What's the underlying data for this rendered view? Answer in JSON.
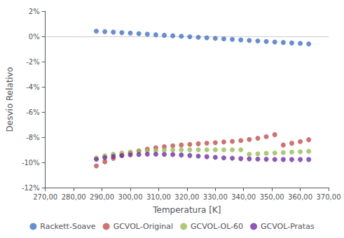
{
  "chart_data": {
    "type": "scatter",
    "xlabel": "Temperatura [K]",
    "ylabel": "Desvio Relativo",
    "x": [
      288,
      291,
      294,
      297,
      300,
      303,
      306,
      309,
      312,
      315,
      318,
      321,
      324,
      327,
      330,
      333,
      336,
      339,
      342,
      345,
      348,
      351,
      354,
      357,
      360,
      363
    ],
    "series": [
      {
        "name": "Rackett-Soave",
        "color": "#4472C4",
        "values": [
          0.0042,
          0.0038,
          0.0034,
          0.003,
          0.0026,
          0.0022,
          0.0018,
          0.0013,
          0.0009,
          0.0005,
          0.0001,
          -0.0003,
          -0.0007,
          -0.0011,
          -0.0015,
          -0.0019,
          -0.0024,
          -0.0028,
          -0.0032,
          -0.0036,
          -0.004,
          -0.0044,
          -0.0048,
          -0.0052,
          -0.0056,
          -0.006
        ]
      },
      {
        "name": "GCVOL-Original",
        "color": "#C0504D",
        "values": [
          -0.1028,
          -0.0995,
          -0.0968,
          -0.0945,
          -0.0925,
          -0.0908,
          -0.0895,
          -0.0884,
          -0.0875,
          -0.0868,
          -0.0862,
          -0.0857,
          -0.0852,
          -0.0847,
          -0.0843,
          -0.0838,
          -0.0833,
          -0.0826,
          -0.0818,
          -0.0808,
          -0.0796,
          -0.078,
          -0.0862,
          -0.0848,
          -0.0835,
          -0.082
        ]
      },
      {
        "name": "GCVOL-OL-60",
        "color": "#9BBB59",
        "values": [
          -0.0965,
          -0.0948,
          -0.0935,
          -0.0925,
          -0.0918,
          -0.0912,
          -0.0908,
          -0.0905,
          -0.0903,
          -0.0901,
          -0.09,
          -0.09,
          -0.09,
          -0.09,
          -0.09,
          -0.09,
          -0.09,
          -0.09,
          -0.0935,
          -0.0932,
          -0.0928,
          -0.0925,
          -0.0922,
          -0.0918,
          -0.0915,
          -0.0912
        ]
      },
      {
        "name": "GCVOL-Pratas",
        "color": "#7030A0",
        "values": [
          -0.0975,
          -0.0962,
          -0.0952,
          -0.0945,
          -0.094,
          -0.0937,
          -0.0935,
          -0.0935,
          -0.0936,
          -0.0938,
          -0.0941,
          -0.0945,
          -0.095,
          -0.0955,
          -0.096,
          -0.0964,
          -0.0967,
          -0.097,
          -0.0972,
          -0.0974,
          -0.0975,
          -0.0976,
          -0.0977,
          -0.0977,
          -0.0977,
          -0.0977
        ]
      }
    ],
    "xlim": [
      270,
      370
    ],
    "xticks": [
      {
        "value": 270,
        "label": "270,00"
      },
      {
        "value": 280,
        "label": "280,00"
      },
      {
        "value": 290,
        "label": "290,00"
      },
      {
        "value": 300,
        "label": "300,00"
      },
      {
        "value": 310,
        "label": "310,00"
      },
      {
        "value": 320,
        "label": "320,00"
      },
      {
        "value": 330,
        "label": "330,00"
      },
      {
        "value": 340,
        "label": "340,00"
      },
      {
        "value": 350,
        "label": "350,00"
      },
      {
        "value": 360,
        "label": "360,00"
      },
      {
        "value": 370,
        "label": "370,00"
      }
    ],
    "ylim": [
      -0.12,
      0.02
    ],
    "yticks": [
      {
        "value": 0.02,
        "label": "2%"
      },
      {
        "value": 0.0,
        "label": "0%"
      },
      {
        "value": -0.02,
        "label": "-2%"
      },
      {
        "value": -0.04,
        "label": "-4%"
      },
      {
        "value": -0.06,
        "label": "-6%"
      },
      {
        "value": -0.08,
        "label": "-8%"
      },
      {
        "value": -0.1,
        "label": "-10%"
      },
      {
        "value": -0.12,
        "label": "-12%"
      }
    ],
    "grid": false,
    "legend": "bottom"
  }
}
